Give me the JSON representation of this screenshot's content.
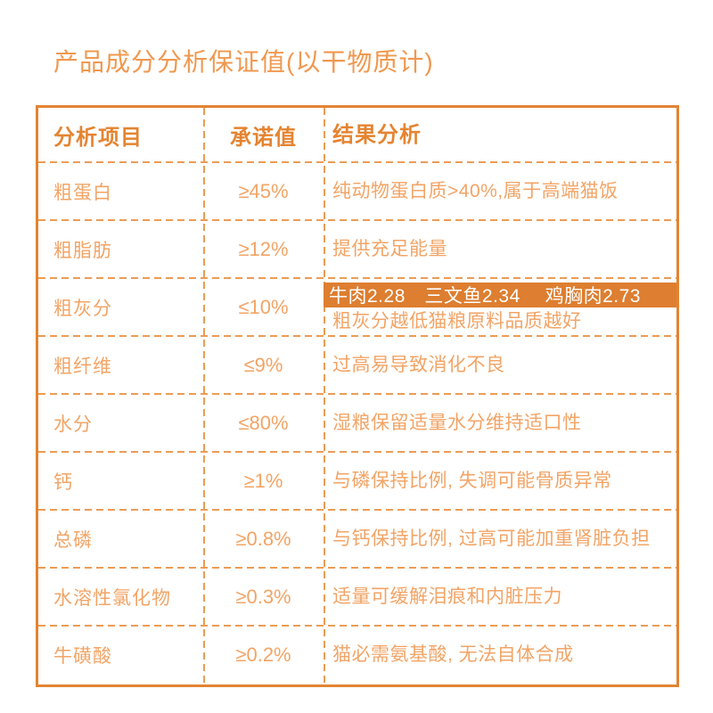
{
  "page": {
    "title": "产品成分分析保证值(以干物质计)"
  },
  "colors": {
    "accent_orange": "#E28433",
    "text_orange": "#F2A466",
    "title_orange": "#F0984F",
    "highlight_band_bg": "#DD7E30",
    "highlight_band_text": "#FFFFFF",
    "dashed_line": "#EB9C55",
    "background": "#FFFFFF"
  },
  "table": {
    "headers": {
      "item": "分析项目",
      "value": "承诺值",
      "result": "结果分析"
    },
    "rows": [
      {
        "item": "粗蛋白",
        "value": "≥45%",
        "result": "纯动物蛋白质>40%,属于高端猫饭"
      },
      {
        "item": "粗脂肪",
        "value": "≥12%",
        "result": "提供充足能量"
      },
      {
        "item": "粗灰分",
        "value": "≤10%",
        "highlight": "牛肉2.28　三文鱼2.34　 鸡胸肉2.73",
        "result": "粗灰分越低猫粮原料品质越好"
      },
      {
        "item": "粗纤维",
        "value": "≤9%",
        "result": "过高易导致消化不良"
      },
      {
        "item": "水分",
        "value": "≤80%",
        "result": "湿粮保留适量水分维持适口性"
      },
      {
        "item": "钙",
        "value": "≥1%",
        "result": "与磷保持比例, 失调可能骨质异常"
      },
      {
        "item": "总磷",
        "value": "≥0.8%",
        "result": "与钙保持比例, 过高可能加重肾脏负担"
      },
      {
        "item": "水溶性氯化物",
        "value": "≥0.3%",
        "result": "适量可缓解泪痕和内脏压力"
      },
      {
        "item": "牛磺酸",
        "value": "≥0.2%",
        "result": "猫必需氨基酸, 无法自体合成"
      }
    ]
  }
}
